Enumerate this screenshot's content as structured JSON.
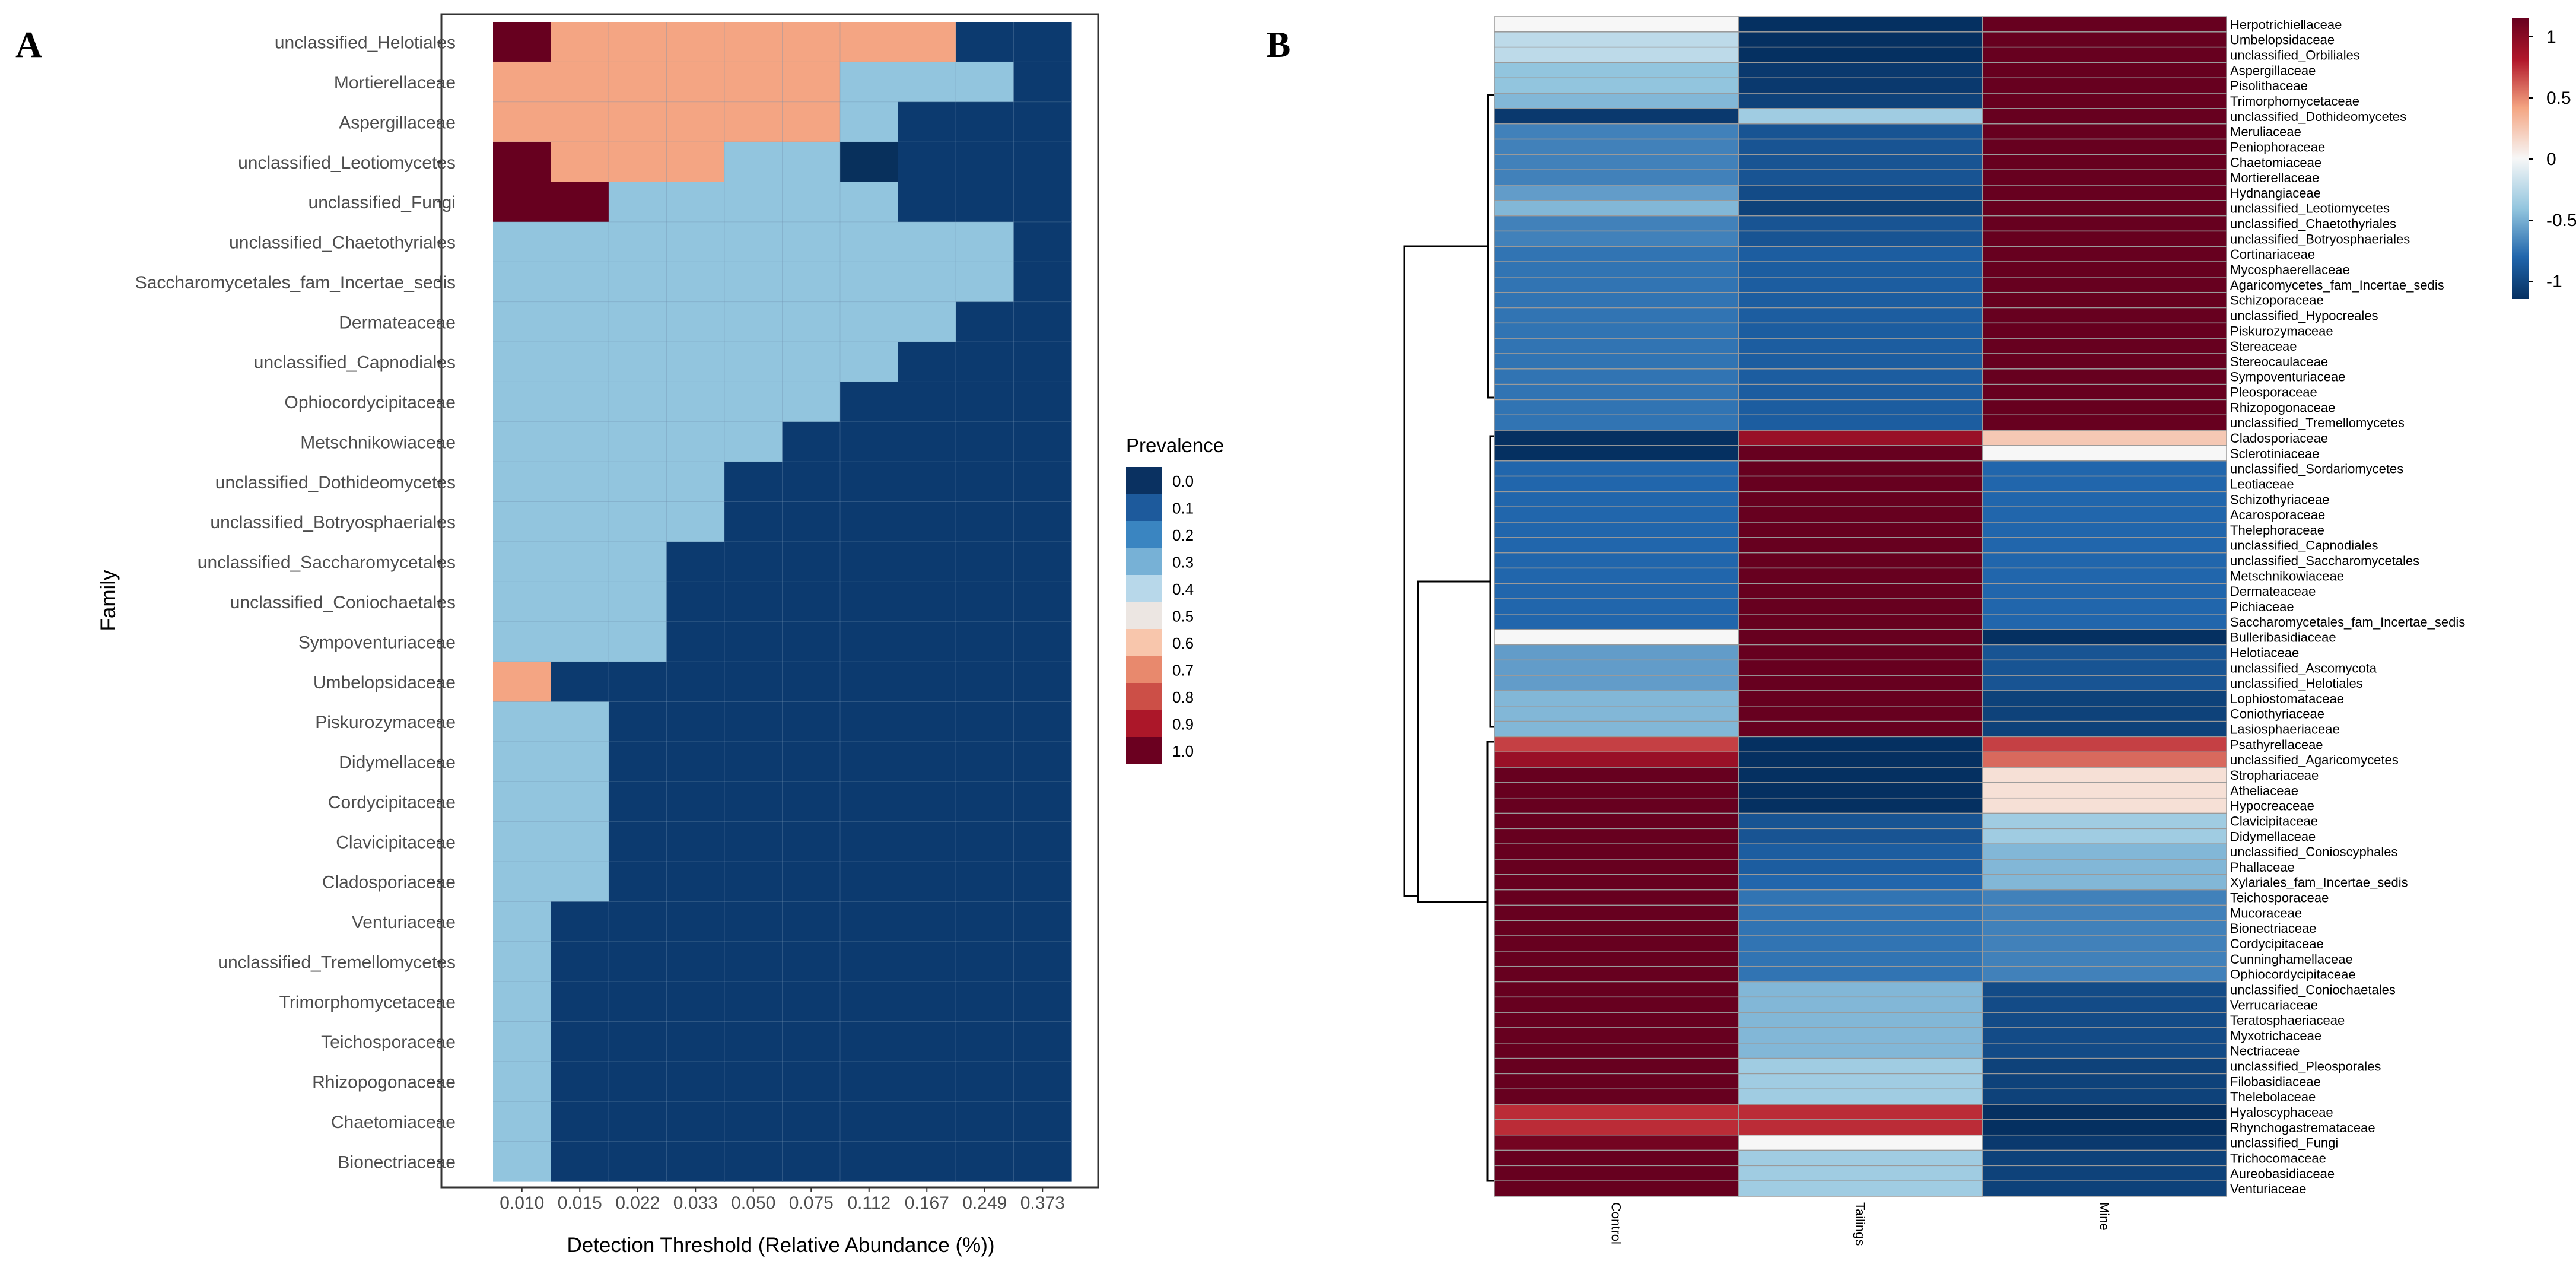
{
  "chart_data": [
    {
      "type": "heatmap",
      "panel": "A",
      "xlabel": "Detection Threshold (Relative Abundance (%))",
      "ylabel": "Family",
      "x_ticks": [
        "0.010",
        "0.015",
        "0.022",
        "0.033",
        "0.050",
        "0.075",
        "0.112",
        "0.167",
        "0.249",
        "0.373"
      ],
      "rows": [
        "unclassified_Helotiales",
        "Mortierellaceae",
        "Aspergillaceae",
        "unclassified_Leotiomycetes",
        "unclassified_Fungi",
        "unclassified_Chaetothyriales",
        "Saccharomycetales_fam_Incertae_sedis",
        "Dermateaceae",
        "unclassified_Capnodiales",
        "Ophiocordycipitaceae",
        "Metschnikowiaceae",
        "unclassified_Dothideomycetes",
        "unclassified_Botryosphaeriales",
        "unclassified_Saccharomycetales",
        "unclassified_Coniochaetales",
        "Sympoventuriaceae",
        "Umbelopsidaceae",
        "Piskurozymaceae",
        "Didymellaceae",
        "Cordycipitaceae",
        "Clavicipitaceae",
        "Cladosporiaceae",
        "Venturiaceae",
        "unclassified_Tremellomycetes",
        "Trimorphomycetaceae",
        "Teichosporaceae",
        "Rhizopogonaceae",
        "Chaetomiaceae",
        "Bionectriaceae"
      ],
      "values": [
        [
          1.0,
          0.7,
          0.7,
          0.7,
          0.7,
          0.7,
          0.7,
          0.7,
          0.1,
          0.1
        ],
        [
          0.7,
          0.7,
          0.7,
          0.7,
          0.7,
          0.7,
          0.3,
          0.3,
          0.3,
          0.1
        ],
        [
          0.7,
          0.7,
          0.7,
          0.7,
          0.7,
          0.7,
          0.3,
          0.1,
          0.1,
          0.1
        ],
        [
          1.0,
          0.7,
          0.7,
          0.7,
          0.3,
          0.3,
          0.0,
          0.1,
          0.1,
          0.1
        ],
        [
          1.0,
          1.0,
          0.3,
          0.3,
          0.3,
          0.3,
          0.3,
          0.1,
          0.1,
          0.1
        ],
        [
          0.3,
          0.3,
          0.3,
          0.3,
          0.3,
          0.3,
          0.3,
          0.3,
          0.3,
          0.1
        ],
        [
          0.3,
          0.3,
          0.3,
          0.3,
          0.3,
          0.3,
          0.3,
          0.3,
          0.3,
          0.1
        ],
        [
          0.3,
          0.3,
          0.3,
          0.3,
          0.3,
          0.3,
          0.3,
          0.3,
          0.1,
          0.1
        ],
        [
          0.3,
          0.3,
          0.3,
          0.3,
          0.3,
          0.3,
          0.3,
          0.1,
          0.1,
          0.1
        ],
        [
          0.3,
          0.3,
          0.3,
          0.3,
          0.3,
          0.3,
          0.1,
          0.1,
          0.1,
          0.1
        ],
        [
          0.3,
          0.3,
          0.3,
          0.3,
          0.3,
          0.1,
          0.1,
          0.1,
          0.1,
          0.1
        ],
        [
          0.3,
          0.3,
          0.3,
          0.3,
          0.1,
          0.1,
          0.1,
          0.1,
          0.1,
          0.1
        ],
        [
          0.3,
          0.3,
          0.3,
          0.3,
          0.1,
          0.1,
          0.1,
          0.1,
          0.1,
          0.1
        ],
        [
          0.3,
          0.3,
          0.3,
          0.1,
          0.1,
          0.1,
          0.1,
          0.1,
          0.1,
          0.1
        ],
        [
          0.3,
          0.3,
          0.3,
          0.1,
          0.1,
          0.1,
          0.1,
          0.1,
          0.1,
          0.1
        ],
        [
          0.3,
          0.3,
          0.3,
          0.1,
          0.1,
          0.1,
          0.1,
          0.1,
          0.1,
          0.1
        ],
        [
          0.7,
          0.1,
          0.1,
          0.1,
          0.1,
          0.1,
          0.1,
          0.1,
          0.1,
          0.1
        ],
        [
          0.3,
          0.3,
          0.1,
          0.1,
          0.1,
          0.1,
          0.1,
          0.1,
          0.1,
          0.1
        ],
        [
          0.3,
          0.3,
          0.1,
          0.1,
          0.1,
          0.1,
          0.1,
          0.1,
          0.1,
          0.1
        ],
        [
          0.3,
          0.3,
          0.1,
          0.1,
          0.1,
          0.1,
          0.1,
          0.1,
          0.1,
          0.1
        ],
        [
          0.3,
          0.3,
          0.1,
          0.1,
          0.1,
          0.1,
          0.1,
          0.1,
          0.1,
          0.1
        ],
        [
          0.3,
          0.3,
          0.1,
          0.1,
          0.1,
          0.1,
          0.1,
          0.1,
          0.1,
          0.1
        ],
        [
          0.3,
          0.1,
          0.1,
          0.1,
          0.1,
          0.1,
          0.1,
          0.1,
          0.1,
          0.1
        ],
        [
          0.3,
          0.1,
          0.1,
          0.1,
          0.1,
          0.1,
          0.1,
          0.1,
          0.1,
          0.1
        ],
        [
          0.3,
          0.1,
          0.1,
          0.1,
          0.1,
          0.1,
          0.1,
          0.1,
          0.1,
          0.1
        ],
        [
          0.3,
          0.1,
          0.1,
          0.1,
          0.1,
          0.1,
          0.1,
          0.1,
          0.1,
          0.1
        ],
        [
          0.3,
          0.1,
          0.1,
          0.1,
          0.1,
          0.1,
          0.1,
          0.1,
          0.1,
          0.1
        ],
        [
          0.3,
          0.1,
          0.1,
          0.1,
          0.1,
          0.1,
          0.1,
          0.1,
          0.1,
          0.1
        ],
        [
          0.3,
          0.1,
          0.1,
          0.1,
          0.1,
          0.1,
          0.1,
          0.1,
          0.1,
          0.1
        ]
      ],
      "legend": {
        "title": "Prevalence",
        "labels": [
          "0.0",
          "0.1",
          "0.2",
          "0.3",
          "0.4",
          "0.5",
          "0.6",
          "0.7",
          "0.8",
          "0.9",
          "1.0"
        ],
        "colors": [
          "#0a3161",
          "#1d5a9c",
          "#3a85c1",
          "#77b1d6",
          "#b8d8ea",
          "#ece6e2",
          "#f8c6ac",
          "#e8896d",
          "#cc4f47",
          "#ac1729",
          "#6b0020"
        ]
      },
      "value_colors": {
        "0.0": "#08305c",
        "0.1": "#0c3a6f",
        "0.3": "#92c5de",
        "0.7": "#f4a583",
        "1.0": "#67001f"
      }
    },
    {
      "type": "heatmap",
      "panel": "B",
      "columns": [
        "Control",
        "Tailings",
        "Mine"
      ],
      "rows": [
        "Herpotrichiellaceae",
        "Umbelopsidaceae",
        "unclassified_Orbiliales",
        "Aspergillaceae",
        "Pisolithaceae",
        "Trimorphomycetaceae",
        "unclassified_Dothideomycetes",
        "Meruliaceae",
        "Peniophoraceae",
        "Chaetomiaceae",
        "Mortierellaceae",
        "Hydnangiaceae",
        "unclassified_Leotiomycetes",
        "unclassified_Chaetothyriales",
        "unclassified_Botryosphaeriales",
        "Cortinariaceae",
        "Mycosphaerellaceae",
        "Agaricomycetes_fam_Incertae_sedis",
        "Schizoporaceae",
        "unclassified_Hypocreales",
        "Piskurozymaceae",
        "Stereaceae",
        "Stereocaulaceae",
        "Sympoventuriaceae",
        "Pleosporaceae",
        "Rhizopogonaceae",
        "unclassified_Tremellomycetes",
        "Cladosporiaceae",
        "Sclerotiniaceae",
        "unclassified_Sordariomycetes",
        "Leotiaceae",
        "Schizothyriaceae",
        "Acarosporaceae",
        "Thelephoraceae",
        "unclassified_Capnodiales",
        "unclassified_Saccharomycetales",
        "Metschnikowiaceae",
        "Dermateaceae",
        "Pichiaceae",
        "Saccharomycetales_fam_Incertae_sedis",
        "Bulleribasidiaceae",
        "Helotiaceae",
        "unclassified_Ascomycota",
        "unclassified_Helotiales",
        "Lophiostomataceae",
        "Coniothyriaceae",
        "Lasiosphaeriaceae",
        "Psathyrellaceae",
        "unclassified_Agaricomycetes",
        "Strophariaceae",
        "Atheliaceae",
        "Hypocreaceae",
        "Clavicipitaceae",
        "Didymellaceae",
        "unclassified_Conioscyphales",
        "Phallaceae",
        "Xylariales_fam_Incertae_sedis",
        "Teichosporaceae",
        "Mucoraceae",
        "Bionectriaceae",
        "Cordycipitaceae",
        "Cunninghamellaceae",
        "Ophiocordycipitaceae",
        "unclassified_Coniochaetales",
        "Verrucariaceae",
        "Teratosphaeriaceae",
        "Myxotrichaceae",
        "Nectriaceae",
        "unclassified_Pleosporales",
        "Filobasidiaceae",
        "Thelebolaceae",
        "Hyaloscyphaceae",
        "Rhynchogastremataceae",
        "unclassified_Fungi",
        "Trichocomaceae",
        "Aureobasidiaceae",
        "Venturiaceae"
      ],
      "values": [
        [
          0.0,
          -1.0,
          1.0
        ],
        [
          -0.2,
          -1.0,
          1.0
        ],
        [
          -0.2,
          -1.0,
          1.0
        ],
        [
          -0.35,
          -0.95,
          1.0
        ],
        [
          -0.35,
          -0.95,
          1.0
        ],
        [
          -0.4,
          -0.9,
          1.0
        ],
        [
          -0.95,
          -0.3,
          1.0
        ],
        [
          -0.6,
          -0.8,
          1.0
        ],
        [
          -0.6,
          -0.8,
          1.0
        ],
        [
          -0.6,
          -0.8,
          1.0
        ],
        [
          -0.6,
          -0.8,
          1.0
        ],
        [
          -0.5,
          -0.85,
          1.0
        ],
        [
          -0.4,
          -0.9,
          1.0
        ],
        [
          -0.6,
          -0.8,
          1.0
        ],
        [
          -0.6,
          -0.8,
          1.0
        ],
        [
          -0.65,
          -0.75,
          1.0
        ],
        [
          -0.65,
          -0.75,
          1.0
        ],
        [
          -0.65,
          -0.75,
          1.0
        ],
        [
          -0.65,
          -0.75,
          1.0
        ],
        [
          -0.65,
          -0.75,
          1.0
        ],
        [
          -0.65,
          -0.75,
          1.0
        ],
        [
          -0.65,
          -0.75,
          1.0
        ],
        [
          -0.65,
          -0.75,
          1.0
        ],
        [
          -0.65,
          -0.75,
          1.0
        ],
        [
          -0.65,
          -0.75,
          1.0
        ],
        [
          -0.65,
          -0.75,
          1.0
        ],
        [
          -0.65,
          -0.75,
          1.0
        ],
        [
          -1.0,
          0.8,
          0.2
        ],
        [
          -1.0,
          1.0,
          0.0
        ],
        [
          -0.7,
          1.0,
          -0.7
        ],
        [
          -0.7,
          1.0,
          -0.7
        ],
        [
          -0.7,
          1.0,
          -0.7
        ],
        [
          -0.7,
          1.0,
          -0.7
        ],
        [
          -0.7,
          1.0,
          -0.7
        ],
        [
          -0.7,
          1.0,
          -0.7
        ],
        [
          -0.7,
          1.0,
          -0.7
        ],
        [
          -0.7,
          1.0,
          -0.7
        ],
        [
          -0.7,
          1.0,
          -0.7
        ],
        [
          -0.7,
          1.0,
          -0.7
        ],
        [
          -0.7,
          1.0,
          -0.7
        ],
        [
          0.0,
          1.0,
          -1.0
        ],
        [
          -0.5,
          1.0,
          -0.8
        ],
        [
          -0.5,
          1.0,
          -0.8
        ],
        [
          -0.5,
          1.0,
          -0.8
        ],
        [
          -0.4,
          1.0,
          -0.9
        ],
        [
          -0.4,
          1.0,
          -0.9
        ],
        [
          -0.4,
          1.0,
          -0.9
        ],
        [
          0.6,
          -1.0,
          0.6
        ],
        [
          0.8,
          -1.0,
          0.5
        ],
        [
          1.0,
          -1.0,
          0.1
        ],
        [
          1.0,
          -1.0,
          0.1
        ],
        [
          1.0,
          -1.0,
          0.1
        ],
        [
          1.0,
          -0.8,
          -0.3
        ],
        [
          1.0,
          -0.8,
          -0.3
        ],
        [
          1.0,
          -0.75,
          -0.4
        ],
        [
          1.0,
          -0.75,
          -0.4
        ],
        [
          1.0,
          -0.7,
          -0.4
        ],
        [
          1.0,
          -0.65,
          -0.6
        ],
        [
          1.0,
          -0.65,
          -0.6
        ],
        [
          1.0,
          -0.65,
          -0.6
        ],
        [
          1.0,
          -0.65,
          -0.6
        ],
        [
          1.0,
          -0.65,
          -0.6
        ],
        [
          1.0,
          -0.65,
          -0.6
        ],
        [
          1.0,
          -0.4,
          -0.85
        ],
        [
          1.0,
          -0.4,
          -0.85
        ],
        [
          1.0,
          -0.4,
          -0.85
        ],
        [
          1.0,
          -0.4,
          -0.85
        ],
        [
          1.0,
          -0.4,
          -0.85
        ],
        [
          1.0,
          -0.3,
          -0.9
        ],
        [
          1.0,
          -0.3,
          -0.9
        ],
        [
          1.0,
          -0.3,
          -0.9
        ],
        [
          0.65,
          0.65,
          -1.0
        ],
        [
          0.65,
          0.65,
          -1.0
        ],
        [
          0.95,
          0.0,
          -0.95
        ],
        [
          1.0,
          -0.3,
          -0.9
        ],
        [
          1.0,
          -0.3,
          -0.9
        ],
        [
          1.0,
          -0.3,
          -0.9
        ]
      ],
      "legend": {
        "ticks": [
          "1",
          "0.5",
          "0",
          "-0.5",
          "-1"
        ]
      },
      "colormap": [
        "#2166ac",
        "#f7f7f7",
        "#b2182b"
      ]
    }
  ],
  "panel_labels": {
    "a": "A",
    "b": "B"
  },
  "colors": {
    "grid_line": "#6f8fb0",
    "cell_border_b": "#9a9a9a",
    "axis_text": "#4d4d4d"
  }
}
